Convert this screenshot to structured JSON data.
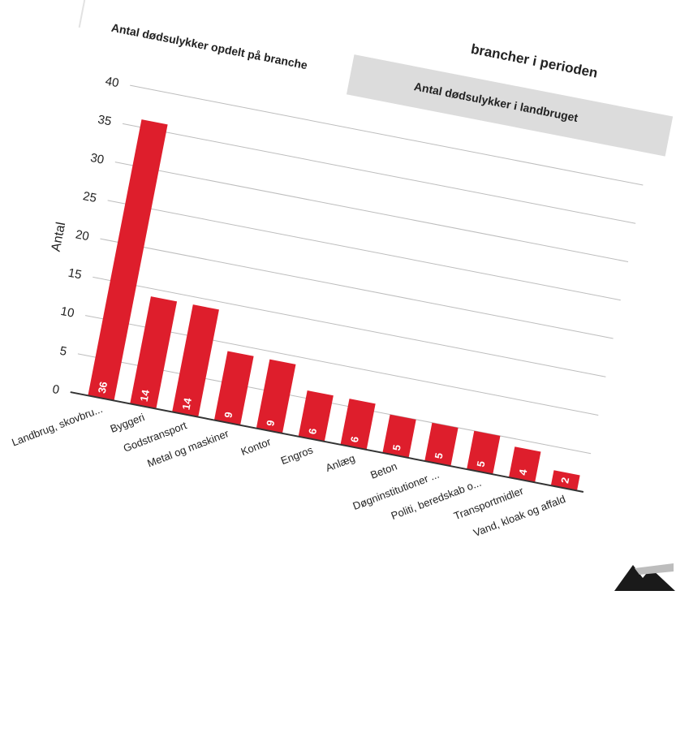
{
  "header": {
    "headline": "brancher i perioden"
  },
  "tabs": [
    {
      "label": "Antal dødsulykker opdelt på branche",
      "active": true
    },
    {
      "label": "Antal dødsulykker i landbruget",
      "active": false
    }
  ],
  "colors": {
    "bar": "#de1e2c",
    "grid": "#bdbdbd",
    "axis": "#333333",
    "tab_inactive": "#dcdcdc"
  },
  "chart_data": {
    "type": "bar",
    "ylabel": "Antal",
    "xlabel": "",
    "ylim": [
      0,
      40
    ],
    "yticks": [
      0,
      5,
      10,
      15,
      20,
      25,
      30,
      35,
      40
    ],
    "grid": true,
    "categories": [
      "Landbrug, skovbru...",
      "Byggeri",
      "Godstransport",
      "Metal og maskiner",
      "Kontor",
      "Engros",
      "Anlæg",
      "Beton",
      "Døgninstitutioner ...",
      "Politi, beredskab o...",
      "Transportmidler",
      "Vand, kloak og affald"
    ],
    "values": [
      36,
      14,
      14,
      9,
      9,
      6,
      6,
      5,
      5,
      5,
      4,
      2
    ]
  }
}
